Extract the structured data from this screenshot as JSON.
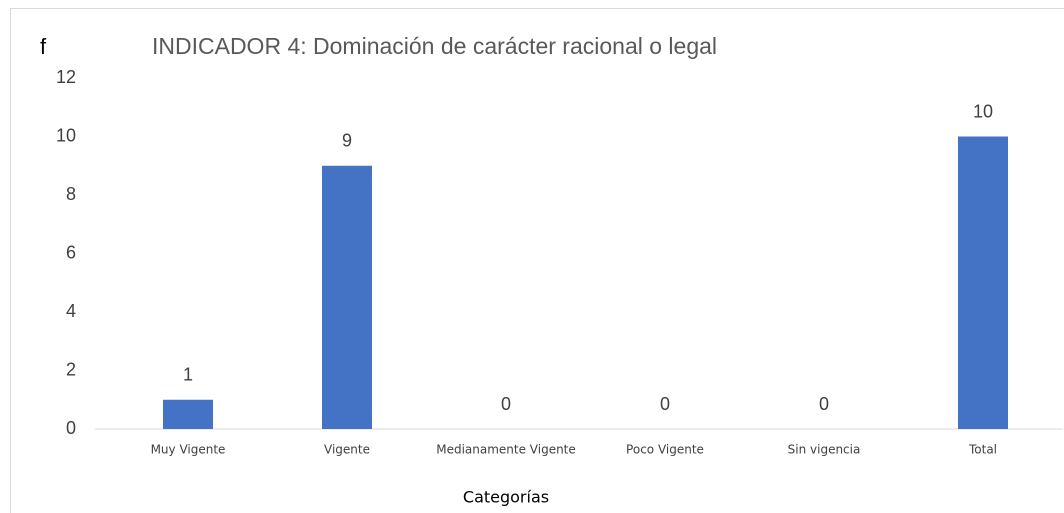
{
  "chart_data": {
    "type": "bar",
    "title": "INDICADOR 4: Dominación de carácter racional o legal",
    "y_label": "f",
    "x_label": "Categorías",
    "categories": [
      "Muy Vigente",
      "Vigente",
      "Medianamente Vigente",
      "Poco Vigente",
      "Sin vigencia",
      "Total"
    ],
    "values": [
      1,
      9,
      0,
      0,
      0,
      10
    ],
    "color": "#4472c4",
    "ylim": [
      0,
      12
    ],
    "yticks": [
      0,
      2,
      4,
      6,
      8,
      10,
      12
    ],
    "grid": false
  }
}
